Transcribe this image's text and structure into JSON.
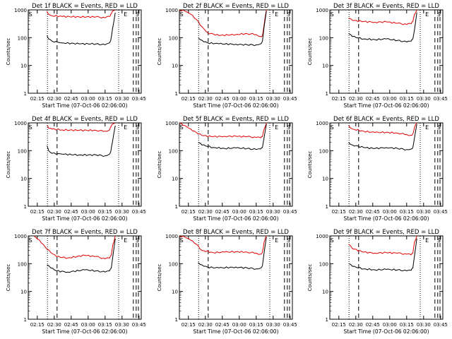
{
  "chart_data": [
    {
      "type": "line",
      "title": "Det 1f BLACK = Events, RED = LLD",
      "xlabel": "Start Time (07-Oct-06 02:06:00)",
      "ylabel": "Counts/sec",
      "yscale": "log",
      "ylim": [
        1,
        1000
      ],
      "yticks": [
        "1",
        "10",
        "100",
        "1000"
      ],
      "xticks": [
        "02:15",
        "02:30",
        "02:45",
        "03:00",
        "03:15",
        "03:30",
        "03:45"
      ],
      "markers": [
        "S",
        "E",
        "S"
      ],
      "series": [
        {
          "color": "#000000",
          "x": [
            0.166,
            0.18,
            0.21,
            0.3,
            0.45,
            0.6,
            0.68,
            0.72,
            0.73,
            0.745,
            0.77
          ],
          "y": [
            120,
            90,
            75,
            65,
            60,
            60,
            55,
            65,
            80,
            200,
            800
          ]
        },
        {
          "color": "#e00000",
          "x": [
            0.166,
            0.18,
            0.21,
            0.3,
            0.45,
            0.6,
            0.68,
            0.72,
            0.73,
            0.745,
            0.77
          ],
          "y": [
            900,
            700,
            620,
            580,
            560,
            560,
            520,
            580,
            700,
            900,
            1000
          ]
        }
      ]
    },
    {
      "type": "line",
      "title": "Det 2f BLACK = Events, RED = LLD",
      "xlabel": "Start Time (07-Oct-06 02:06:00)",
      "ylabel": "Counts/sec",
      "yscale": "log",
      "ylim": [
        1,
        1000
      ],
      "yticks": [
        "1",
        "10",
        "100",
        "1000"
      ],
      "xticks": [
        "02:15",
        "02:30",
        "02:45",
        "03:00",
        "03:15",
        "03:30",
        "03:45"
      ],
      "markers": [
        "S",
        "E",
        "S"
      ],
      "series": [
        {
          "color": "#000000",
          "x": [
            0.166,
            0.2,
            0.25,
            0.35,
            0.5,
            0.6,
            0.68,
            0.72,
            0.735,
            0.75,
            0.77
          ],
          "y": [
            100,
            80,
            65,
            60,
            58,
            55,
            55,
            60,
            75,
            250,
            900
          ]
        },
        {
          "color": "#e00000",
          "x": [
            0.0,
            0.05,
            0.1,
            0.15,
            0.2,
            0.25,
            0.35,
            0.5,
            0.6,
            0.68,
            0.72,
            0.735,
            0.75,
            0.77
          ],
          "y": [
            1000,
            900,
            700,
            450,
            250,
            150,
            120,
            130,
            140,
            130,
            110,
            120,
            300,
            1000
          ]
        }
      ]
    },
    {
      "type": "line",
      "title": "Det 3f BLACK = Events, RED = LLD",
      "xlabel": "Start Time (07-Oct-06 02:06:00)",
      "ylabel": "Counts/sec",
      "yscale": "log",
      "ylim": [
        1,
        1000
      ],
      "yticks": [
        "1",
        "10",
        "100",
        "1000"
      ],
      "xticks": [
        "02:15",
        "02:30",
        "02:45",
        "03:00",
        "03:15",
        "03:30",
        "03:45"
      ],
      "markers": [
        "S",
        "E",
        "S"
      ],
      "series": [
        {
          "color": "#000000",
          "x": [
            0.166,
            0.2,
            0.3,
            0.4,
            0.5,
            0.6,
            0.68,
            0.72,
            0.735,
            0.75,
            0.77
          ],
          "y": [
            140,
            110,
            90,
            85,
            90,
            80,
            70,
            75,
            90,
            200,
            800
          ]
        },
        {
          "color": "#e00000",
          "x": [
            0.166,
            0.2,
            0.3,
            0.4,
            0.5,
            0.6,
            0.68,
            0.72,
            0.735,
            0.75,
            0.77
          ],
          "y": [
            500,
            420,
            380,
            360,
            370,
            330,
            300,
            320,
            380,
            700,
            1000
          ]
        }
      ]
    },
    {
      "type": "line",
      "title": "Det 4f BLACK = Events, RED = LLD",
      "xlabel": "Start Time (07-Oct-06 02:06:00)",
      "ylabel": "Counts/sec",
      "yscale": "log",
      "ylim": [
        1,
        1000
      ],
      "yticks": [
        "1",
        "10",
        "100",
        "1000"
      ],
      "xticks": [
        "02:15",
        "02:30",
        "02:45",
        "03:00",
        "03:15",
        "03:30",
        "03:45"
      ],
      "markers": [
        "S",
        "E",
        "S"
      ],
      "series": [
        {
          "color": "#000000",
          "x": [
            0.166,
            0.18,
            0.21,
            0.3,
            0.45,
            0.6,
            0.68,
            0.72,
            0.73,
            0.745,
            0.77
          ],
          "y": [
            150,
            100,
            80,
            75,
            70,
            70,
            65,
            75,
            90,
            200,
            800
          ]
        },
        {
          "color": "#e00000",
          "x": [
            0.166,
            0.18,
            0.21,
            0.3,
            0.45,
            0.6,
            0.68,
            0.72,
            0.73,
            0.745,
            0.77
          ],
          "y": [
            800,
            650,
            600,
            560,
            540,
            540,
            500,
            560,
            700,
            900,
            1000
          ]
        }
      ]
    },
    {
      "type": "line",
      "title": "Det 5f BLACK = Events, RED = LLD",
      "xlabel": "Start Time (07-Oct-06 02:06:00)",
      "ylabel": "Counts/sec",
      "yscale": "log",
      "ylim": [
        1,
        1000
      ],
      "yticks": [
        "1",
        "10",
        "100",
        "1000"
      ],
      "xticks": [
        "02:15",
        "02:30",
        "02:45",
        "03:00",
        "03:15",
        "03:30",
        "03:45"
      ],
      "markers": [
        "S",
        "E",
        "S"
      ],
      "series": [
        {
          "color": "#000000",
          "x": [
            0.166,
            0.2,
            0.3,
            0.4,
            0.5,
            0.6,
            0.68,
            0.72,
            0.735,
            0.75,
            0.77
          ],
          "y": [
            200,
            160,
            130,
            120,
            125,
            120,
            110,
            115,
            130,
            300,
            900
          ]
        },
        {
          "color": "#e00000",
          "x": [
            0.0,
            0.05,
            0.1,
            0.15,
            0.2,
            0.3,
            0.4,
            0.5,
            0.6,
            0.68,
            0.72,
            0.735,
            0.75,
            0.77
          ],
          "y": [
            1000,
            800,
            600,
            450,
            350,
            320,
            330,
            330,
            320,
            300,
            290,
            320,
            600,
            1000
          ]
        }
      ]
    },
    {
      "type": "line",
      "title": "Det 6f BLACK = Events, RED = LLD",
      "xlabel": "Start Time (07-Oct-06 02:06:00)",
      "ylabel": "Counts/sec",
      "yscale": "log",
      "ylim": [
        1,
        1000
      ],
      "yticks": [
        "1",
        "10",
        "100",
        "1000"
      ],
      "xticks": [
        "02:15",
        "02:30",
        "02:45",
        "03:00",
        "03:15",
        "03:30",
        "03:45"
      ],
      "markers": [
        "S",
        "E",
        "S"
      ],
      "series": [
        {
          "color": "#000000",
          "x": [
            0.166,
            0.2,
            0.3,
            0.4,
            0.5,
            0.6,
            0.68,
            0.72,
            0.735,
            0.75,
            0.77
          ],
          "y": [
            200,
            160,
            130,
            120,
            130,
            120,
            110,
            115,
            130,
            300,
            900
          ]
        },
        {
          "color": "#e00000",
          "x": [
            0.166,
            0.2,
            0.3,
            0.4,
            0.5,
            0.6,
            0.68,
            0.72,
            0.735,
            0.75,
            0.77
          ],
          "y": [
            800,
            600,
            500,
            450,
            460,
            430,
            380,
            360,
            400,
            700,
            1000
          ]
        }
      ]
    },
    {
      "type": "line",
      "title": "Det 7f BLACK = Events, RED = LLD",
      "xlabel": "Start Time (07-Oct-06 02:06:00)",
      "ylabel": "Counts/sec",
      "yscale": "log",
      "ylim": [
        1,
        1000
      ],
      "yticks": [
        "1",
        "10",
        "100",
        "1000"
      ],
      "xticks": [
        "02:15",
        "02:30",
        "02:45",
        "03:00",
        "03:15",
        "03:30",
        "03:45"
      ],
      "markers": [
        "S",
        "E",
        "S"
      ],
      "series": [
        {
          "color": "#000000",
          "x": [
            0.166,
            0.2,
            0.25,
            0.35,
            0.5,
            0.6,
            0.68,
            0.72,
            0.735,
            0.75,
            0.77
          ],
          "y": [
            90,
            70,
            55,
            50,
            60,
            55,
            50,
            55,
            70,
            200,
            800
          ]
        },
        {
          "color": "#e00000",
          "x": [
            0.05,
            0.1,
            0.15,
            0.2,
            0.25,
            0.35,
            0.5,
            0.6,
            0.68,
            0.72,
            0.735,
            0.75,
            0.77
          ],
          "y": [
            1000,
            700,
            400,
            250,
            180,
            160,
            200,
            180,
            150,
            160,
            200,
            500,
            1000
          ]
        }
      ]
    },
    {
      "type": "line",
      "title": "Det 8f BLACK = Events, RED = LLD",
      "xlabel": "Start Time (07-Oct-06 02:06:00)",
      "ylabel": "Counts/sec",
      "yscale": "log",
      "ylim": [
        1,
        1000
      ],
      "yticks": [
        "1",
        "10",
        "100",
        "1000"
      ],
      "xticks": [
        "02:15",
        "02:30",
        "02:45",
        "03:00",
        "03:15",
        "03:30",
        "03:45"
      ],
      "markers": [
        "S",
        "E",
        "S"
      ],
      "series": [
        {
          "color": "#000000",
          "x": [
            0.166,
            0.2,
            0.25,
            0.35,
            0.5,
            0.6,
            0.68,
            0.72,
            0.735,
            0.75,
            0.77
          ],
          "y": [
            110,
            90,
            75,
            70,
            75,
            70,
            65,
            70,
            85,
            250,
            900
          ]
        },
        {
          "color": "#e00000",
          "x": [
            0.0,
            0.05,
            0.1,
            0.15,
            0.2,
            0.3,
            0.4,
            0.5,
            0.6,
            0.68,
            0.72,
            0.735,
            0.75,
            0.77
          ],
          "y": [
            1000,
            900,
            700,
            500,
            300,
            250,
            260,
            270,
            260,
            240,
            220,
            260,
            600,
            1000
          ]
        }
      ]
    },
    {
      "type": "line",
      "title": "Det 9f BLACK = Events, RED = LLD",
      "xlabel": "Start Time (07-Oct-06 02:06:00)",
      "ylabel": "Counts/sec",
      "yscale": "log",
      "ylim": [
        1,
        1000
      ],
      "yticks": [
        "1",
        "10",
        "100",
        "1000"
      ],
      "xticks": [
        "02:15",
        "02:30",
        "02:45",
        "03:00",
        "03:15",
        "03:30",
        "03:45"
      ],
      "markers": [
        "S",
        "E",
        "S"
      ],
      "series": [
        {
          "color": "#000000",
          "x": [
            0.166,
            0.2,
            0.3,
            0.4,
            0.5,
            0.6,
            0.68,
            0.72,
            0.735,
            0.75,
            0.77
          ],
          "y": [
            100,
            80,
            65,
            60,
            62,
            60,
            55,
            58,
            70,
            200,
            800
          ]
        },
        {
          "color": "#e00000",
          "x": [
            0.166,
            0.2,
            0.3,
            0.4,
            0.5,
            0.6,
            0.68,
            0.72,
            0.735,
            0.75,
            0.77
          ],
          "y": [
            500,
            350,
            260,
            240,
            250,
            240,
            220,
            210,
            240,
            600,
            1000
          ]
        }
      ]
    }
  ]
}
